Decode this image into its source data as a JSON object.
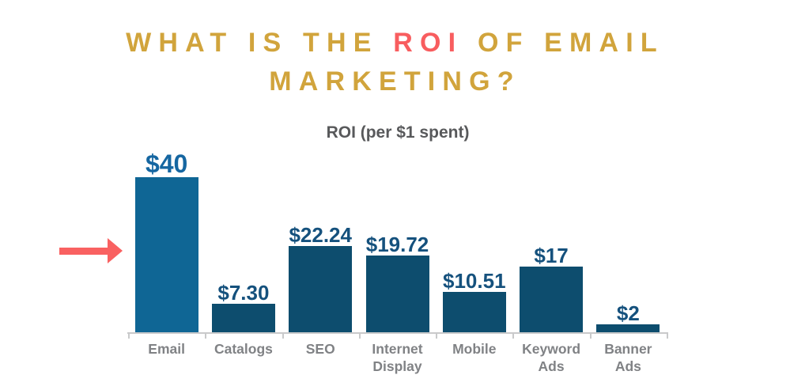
{
  "title": {
    "part1": "WHAT IS THE",
    "highlight": "ROI",
    "part2": "OF EMAIL",
    "line2": "MARKETING?"
  },
  "chart_data": {
    "type": "bar",
    "title": "ROI (per $1 spent)",
    "categories": [
      "Email",
      "Catalogs",
      "SEO",
      "Internet Display",
      "Mobile",
      "Keyword Ads",
      "Banner Ads"
    ],
    "values": [
      40,
      7.3,
      22.24,
      19.72,
      10.51,
      17,
      2
    ],
    "value_labels": [
      "$40",
      "$7.30",
      "$22.24",
      "$19.72",
      "$10.51",
      "$17",
      "$2"
    ],
    "xlabel": "",
    "ylabel": "",
    "ylim": [
      0,
      40
    ],
    "grid": false,
    "legend": null,
    "highlighted_index": 0,
    "annotations": [
      {
        "type": "arrow",
        "direction": "right",
        "target": "Email"
      }
    ]
  },
  "colors": {
    "background": "#ffffff",
    "title_gold": "#d1a43c",
    "title_red": "#f85d5f",
    "subtitle": "#58595b",
    "bar_default": "#0d4d6e",
    "bar_highlight": "#0f6695",
    "value_label": "#15517d",
    "value_label_highlight": "#1566a1",
    "category_label": "#808285",
    "axis": "#c9cacb",
    "arrow": "#f96161"
  }
}
